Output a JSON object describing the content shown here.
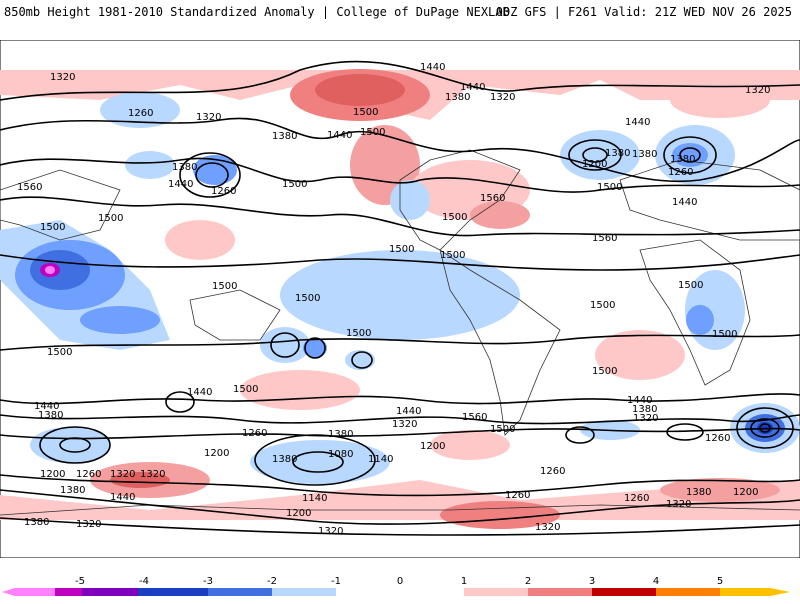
{
  "header": {
    "title": "850mb Height 1981-2010 Standardized Anomaly | College of DuPage NEXLAB",
    "run_info": "00Z GFS | F261 Valid: 21Z WED NOV 26 2025"
  },
  "colorbar": {
    "ticks": [
      "-5",
      "-4",
      "-3",
      "-2",
      "-1",
      "0",
      "1",
      "2",
      "3",
      "4",
      "5"
    ],
    "colors": [
      "#ff80ff",
      "#c000c0",
      "#8000c0",
      "#1a3fc0",
      "#3f6fe0",
      "#6f9fff",
      "#b8d8ff",
      "#ffffff",
      "#ffc8c8",
      "#f08080",
      "#e04040",
      "#c00000",
      "#ff8000",
      "#ffc000"
    ]
  },
  "contour_labels": [
    "1320",
    "1440",
    "1380",
    "1440",
    "1320",
    "1260",
    "1320",
    "1500",
    "1440",
    "1380",
    "1500",
    "1260",
    "1380",
    "1440",
    "1500",
    "1380",
    "1200",
    "1380",
    "1440",
    "1560",
    "1260",
    "1380",
    "1500",
    "1440",
    "1320",
    "1500",
    "1560",
    "1500",
    "1500",
    "1560",
    "1500",
    "1500",
    "1500",
    "1500",
    "1500",
    "1500",
    "1500",
    "1500",
    "1500",
    "1440",
    "1500",
    "1440",
    "1380",
    "1440",
    "1380",
    "1560",
    "1320",
    "1440",
    "1500",
    "1380",
    "1320",
    "1260",
    "1260",
    "1200",
    "1380",
    "1260",
    "1080",
    "1320",
    "1200",
    "1140",
    "1200",
    "1260",
    "1320",
    "1380",
    "1440",
    "1200",
    "1140",
    "1260",
    "1380",
    "1320",
    "1380",
    "1260",
    "1320",
    "1200",
    "1320",
    "1320",
    "1500"
  ]
}
